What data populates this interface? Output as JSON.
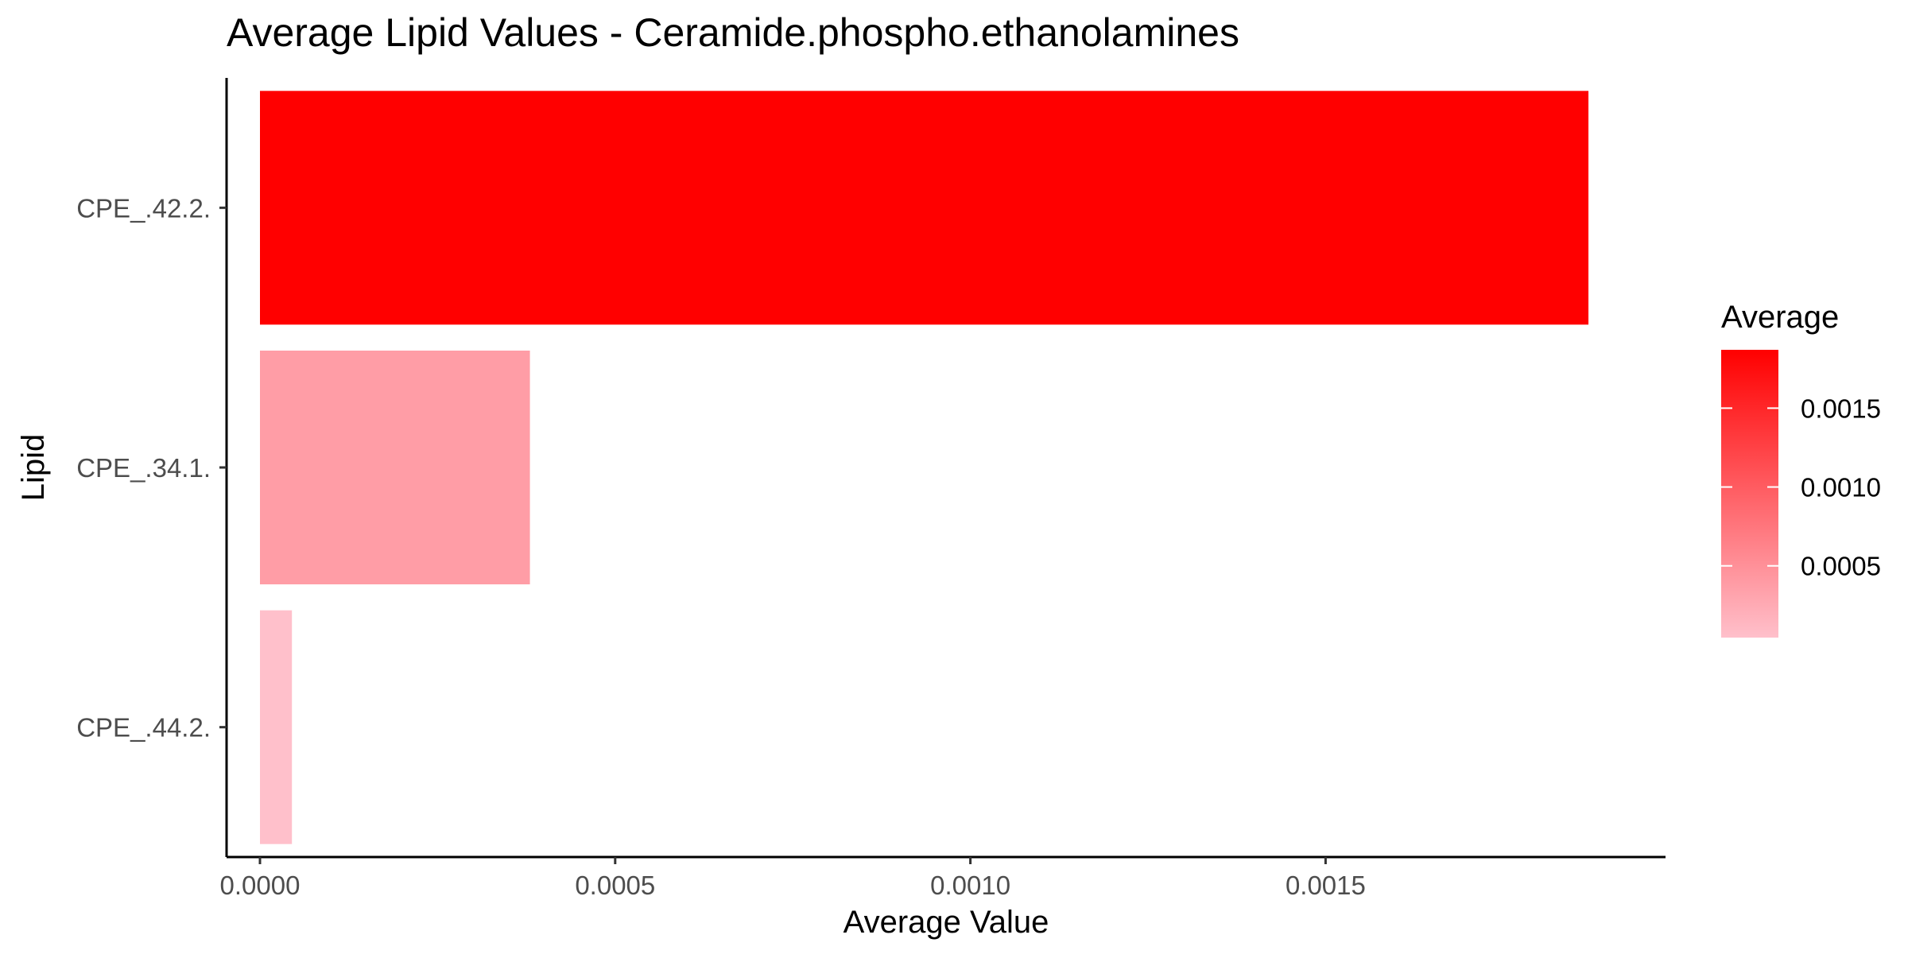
{
  "chart_data": {
    "type": "bar",
    "orientation": "horizontal",
    "title": "Average Lipid Values - Ceramide.phospho.ethanolamines",
    "xlabel": "Average Value",
    "ylabel": "Lipid",
    "categories": [
      "CPE_.44.2.",
      "CPE_.34.1.",
      "CPE_.42.2."
    ],
    "values": [
      4.5e-05,
      0.00038,
      0.00187
    ],
    "xlim": [
      -4.7e-05,
      0.0019785
    ],
    "xticks": [
      {
        "value": 0,
        "label": "0.0000"
      },
      {
        "value": 0.0005,
        "label": "0.0005"
      },
      {
        "value": 0.001,
        "label": "0.0010"
      },
      {
        "value": 0.0015,
        "label": "0.0015"
      }
    ],
    "grid": false,
    "legend": {
      "title": "Average",
      "placement": "right",
      "type": "colorbar",
      "low_color": "#FFC0CB",
      "high_color": "#FF0000",
      "range": [
        4.5e-05,
        0.00187
      ],
      "ticks": [
        {
          "value": 0.0005,
          "label": "0.0005"
        },
        {
          "value": 0.001,
          "label": "0.0010"
        },
        {
          "value": 0.0015,
          "label": "0.0015"
        }
      ]
    }
  }
}
